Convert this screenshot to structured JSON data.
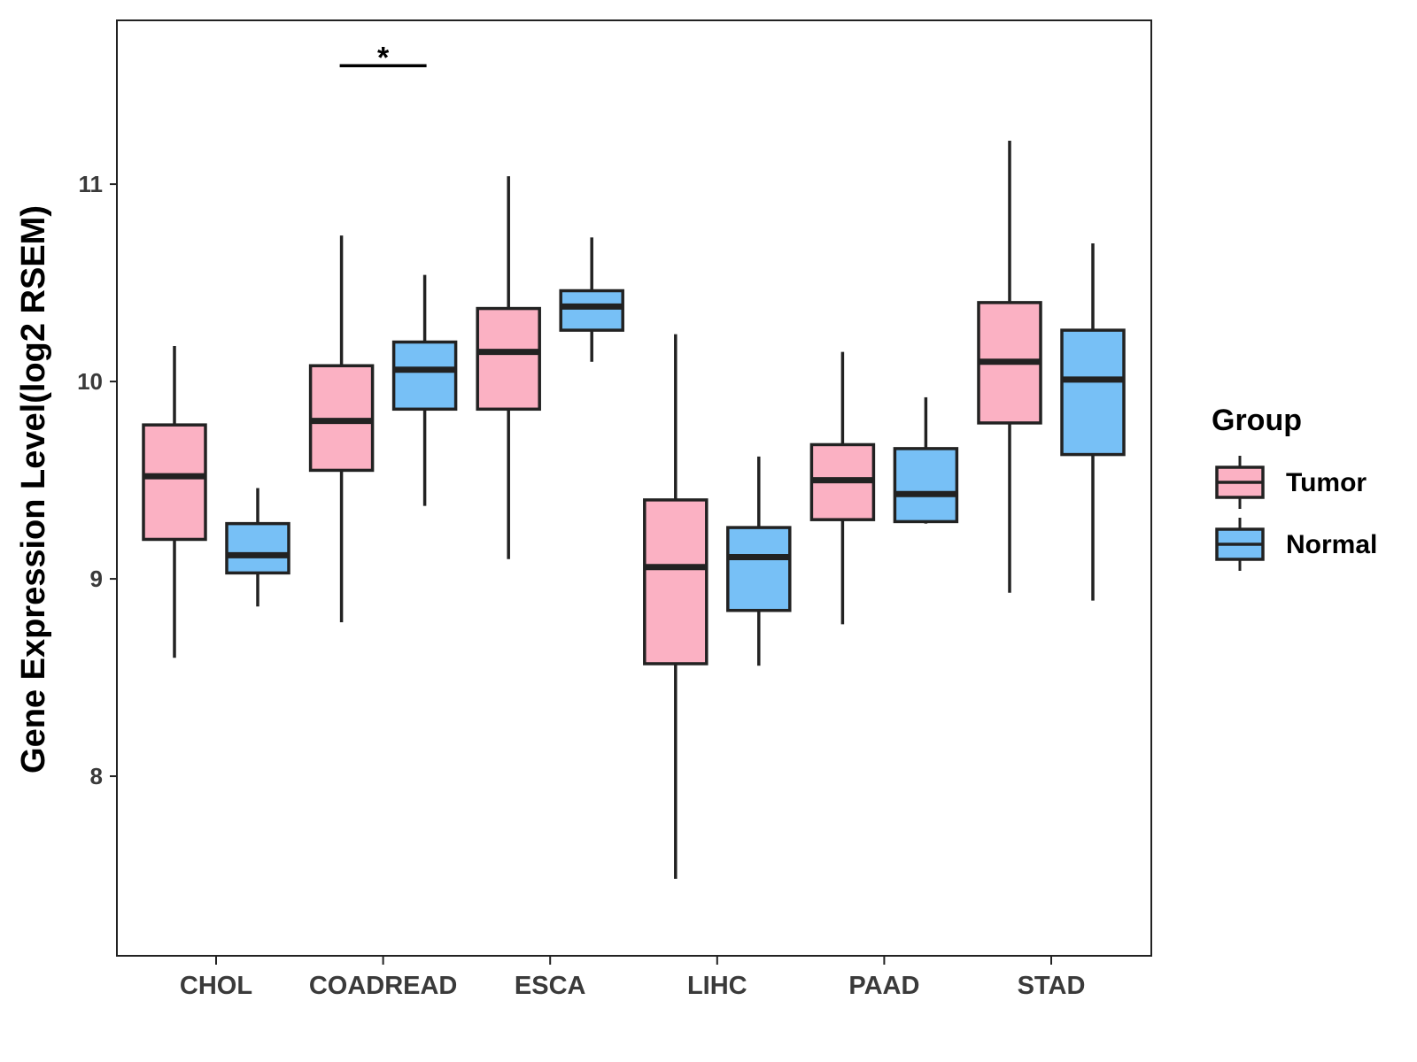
{
  "chart_data": {
    "type": "boxplot",
    "title": "",
    "xlabel": "",
    "ylabel": "Gene Expression Level(log2 RSEM)",
    "ylim": [
      7.09,
      11.83
    ],
    "yticks": [
      8,
      9,
      10,
      11
    ],
    "categories": [
      "CHOL",
      "COADREAD",
      "ESCA",
      "LIHC",
      "PAAD",
      "STAD"
    ],
    "legend": {
      "title": "Group",
      "position": "right",
      "entries": [
        "Tumor",
        "Normal"
      ]
    },
    "colors": {
      "Tumor": "#fbb1c3",
      "Normal": "#77c0f6",
      "outline": "#222222"
    },
    "series": [
      {
        "name": "Tumor",
        "boxes": [
          {
            "category": "CHOL",
            "min": 8.6,
            "q1": 9.2,
            "median": 9.52,
            "q3": 9.78,
            "max": 10.18
          },
          {
            "category": "COADREAD",
            "min": 8.78,
            "q1": 9.55,
            "median": 9.8,
            "q3": 10.08,
            "max": 10.74
          },
          {
            "category": "ESCA",
            "min": 9.1,
            "q1": 9.86,
            "median": 10.15,
            "q3": 10.37,
            "max": 11.04
          },
          {
            "category": "LIHC",
            "min": 7.48,
            "q1": 8.57,
            "median": 9.06,
            "q3": 9.4,
            "max": 10.24
          },
          {
            "category": "PAAD",
            "min": 8.77,
            "q1": 9.3,
            "median": 9.5,
            "q3": 9.68,
            "max": 10.15
          },
          {
            "category": "STAD",
            "min": 8.93,
            "q1": 9.79,
            "median": 10.1,
            "q3": 10.4,
            "max": 11.22
          }
        ]
      },
      {
        "name": "Normal",
        "boxes": [
          {
            "category": "CHOL",
            "min": 8.86,
            "q1": 9.03,
            "median": 9.12,
            "q3": 9.28,
            "max": 9.46
          },
          {
            "category": "COADREAD",
            "min": 9.37,
            "q1": 9.86,
            "median": 10.06,
            "q3": 10.2,
            "max": 10.54
          },
          {
            "category": "ESCA",
            "min": 10.1,
            "q1": 10.26,
            "median": 10.38,
            "q3": 10.46,
            "max": 10.73
          },
          {
            "category": "LIHC",
            "min": 8.56,
            "q1": 8.84,
            "median": 9.11,
            "q3": 9.26,
            "max": 9.62
          },
          {
            "category": "PAAD",
            "min": 9.28,
            "q1": 9.29,
            "median": 9.43,
            "q3": 9.66,
            "max": 9.92
          },
          {
            "category": "STAD",
            "min": 8.89,
            "q1": 9.63,
            "median": 10.01,
            "q3": 10.26,
            "max": 10.7
          }
        ]
      }
    ],
    "annotations": [
      {
        "category": "COADREAD",
        "label": "*",
        "y": 11.6
      }
    ]
  }
}
